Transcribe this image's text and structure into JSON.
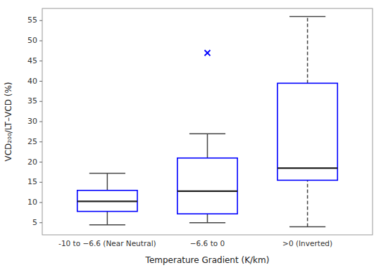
{
  "chart_data": {
    "type": "box",
    "xlabel": "Temperature Gradient (K/km)",
    "ylabel": "VCD₂₀₀/LT–VCD (%)",
    "categories": [
      "-10 to −6.6 (Near Neutral)",
      "−6.6 to 0",
      ">0 (Inverted)"
    ],
    "boxes": [
      {
        "whisker_low": 4.5,
        "q1": 7.8,
        "median": 10.3,
        "q3": 13.0,
        "whisker_high": 17.2,
        "outliers": [],
        "line_style": "solid"
      },
      {
        "whisker_low": 5.0,
        "q1": 7.2,
        "median": 12.8,
        "q3": 21.0,
        "whisker_high": 27.0,
        "outliers": [
          47.0
        ],
        "line_style": "solid"
      },
      {
        "whisker_low": 4.0,
        "q1": 15.5,
        "median": 18.5,
        "q3": 39.5,
        "whisker_high": 56.0,
        "outliers": [],
        "line_style": "dashed"
      }
    ],
    "ylim": [
      2,
      58
    ],
    "yticks": [
      5,
      10,
      15,
      20,
      25,
      30,
      35,
      40,
      45,
      50,
      55
    ],
    "grid": false,
    "color": "#0000FF",
    "marker": "x"
  }
}
